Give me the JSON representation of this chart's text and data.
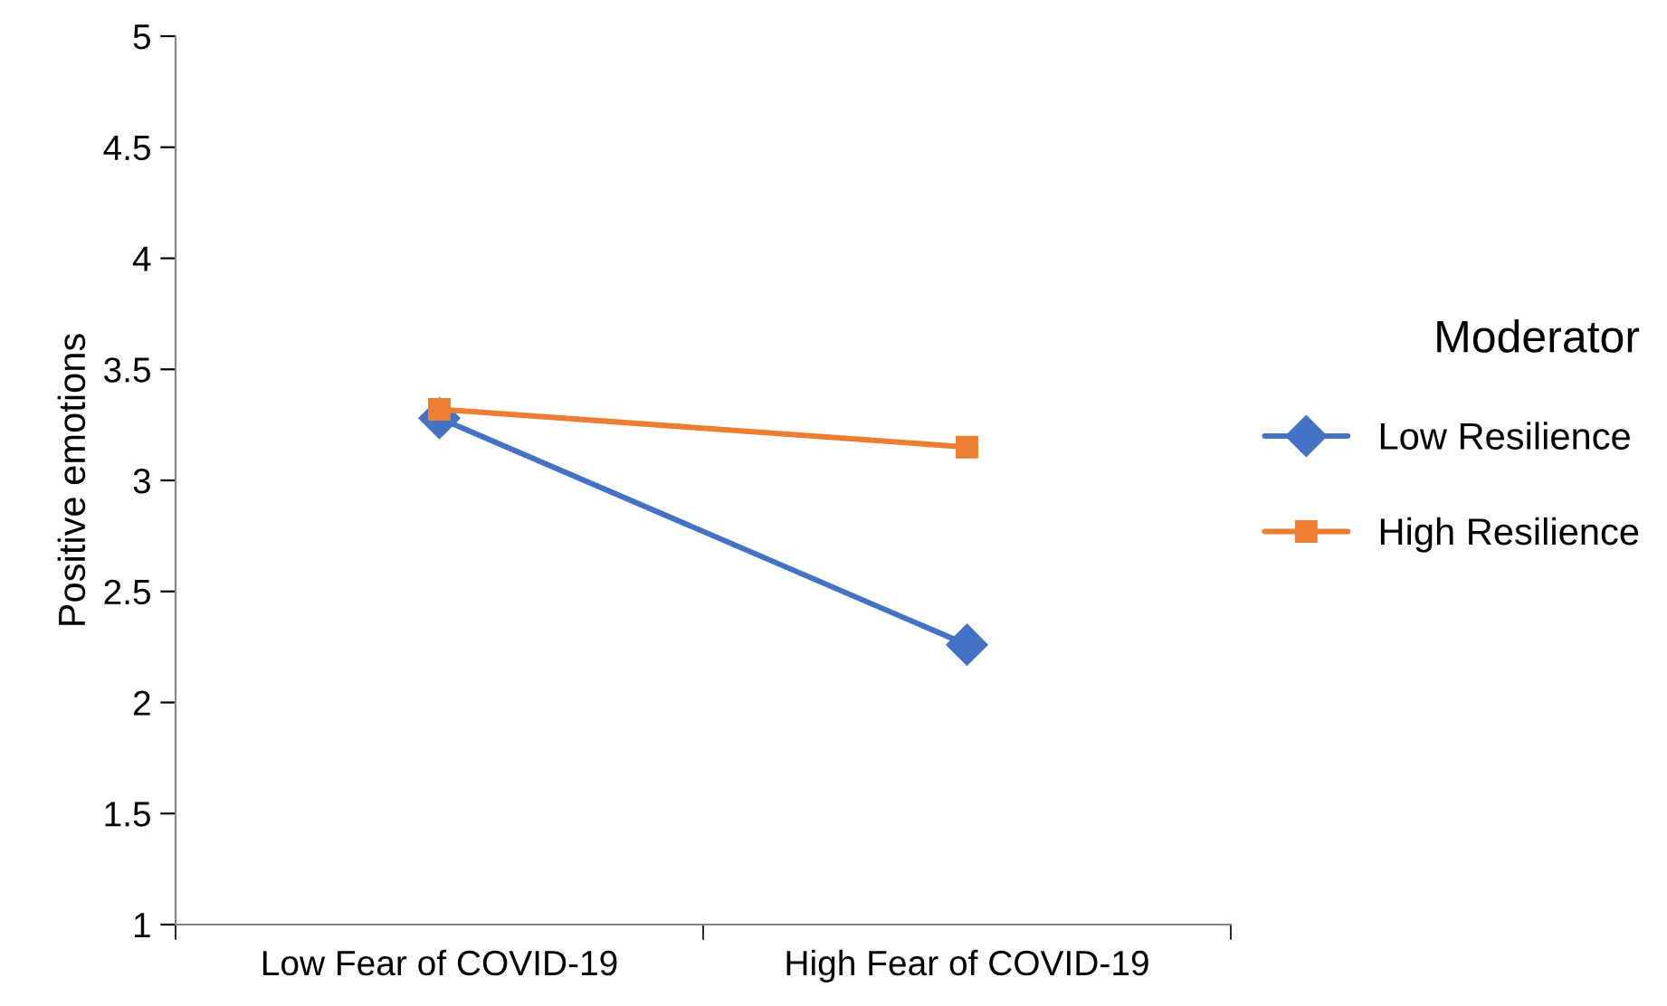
{
  "chart_data": {
    "type": "line",
    "ylabel": "Positive emotions",
    "legend_title": "Moderator",
    "categories": [
      "Low Fear of COVID-19",
      "High Fear of COVID-19"
    ],
    "series": [
      {
        "name": "Low Resilience",
        "color": "#4472c4",
        "values": [
          3.28,
          2.26
        ],
        "marker": "diamond"
      },
      {
        "name": "High Resilience",
        "color": "#ed7d31",
        "values": [
          3.32,
          3.15
        ],
        "marker": "square"
      }
    ],
    "ylim": [
      1,
      5
    ],
    "yticks": [
      1,
      1.5,
      2,
      2.5,
      3,
      3.5,
      4,
      4.5,
      5
    ],
    "grid": false,
    "legend": "right",
    "line_style": "solid"
  }
}
